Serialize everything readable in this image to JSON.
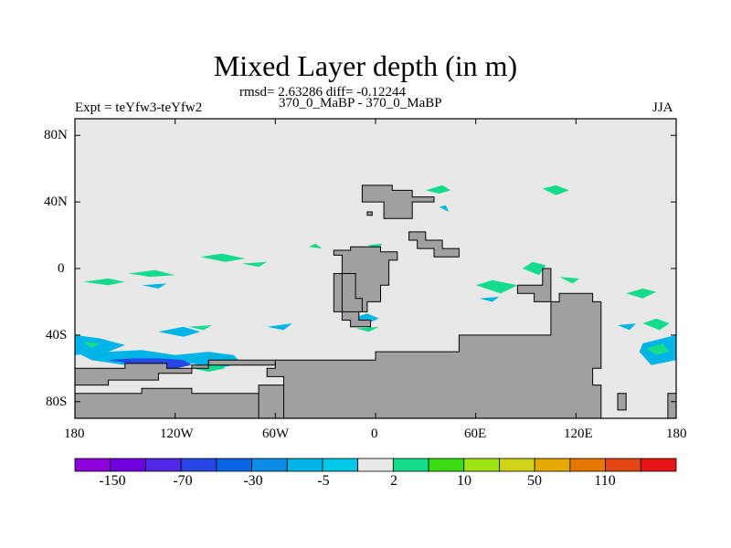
{
  "title": "Mixed Layer depth (in m)",
  "stats": "rmsd= 2.63286 diff= -0.12244",
  "left_label": "Expt = teYfw3-teYfw2",
  "center_label": "370_0_MaBP - 370_0_MaBP",
  "right_label": "JJA",
  "lat_ticks": [
    "80N",
    "40N",
    "0",
    "40S",
    "80S"
  ],
  "lon_ticks": [
    "180",
    "120W",
    "60W",
    "0",
    "60E",
    "120E",
    "180"
  ],
  "colorbar": {
    "colors": [
      "#8c00dc",
      "#7000e0",
      "#5028e6",
      "#2846e6",
      "#0a64e6",
      "#0a8ce6",
      "#00b4e6",
      "#00c8e6",
      "#e8e8e8",
      "#14dc8c",
      "#3cdc14",
      "#a0e614",
      "#d2d214",
      "#e6aa00",
      "#e67800",
      "#e64614",
      "#e61414"
    ],
    "labels": [
      "-150",
      "-70",
      "-30",
      "-5",
      "2",
      "10",
      "50",
      "110"
    ]
  },
  "chart_data": {
    "type": "heatmap",
    "title": "Mixed Layer depth (in m)",
    "variable": "Mixed layer depth difference",
    "units": "m",
    "season": "JJA",
    "experiment": "teYfw3-teYfw2",
    "comparison": "370_0_MaBP - 370_0_MaBP",
    "rmsd": 2.63286,
    "diff": -0.12244,
    "lon_range": [
      -180,
      180
    ],
    "lat_range": [
      -90,
      90
    ],
    "contour_levels": [
      -150,
      -70,
      -30,
      -5,
      2,
      10,
      50,
      110
    ],
    "colors": {
      "ocean_background": "#e8e8e8",
      "land": "#a0a0a0",
      "positive_anomaly": "#14dc8c",
      "negative_anomaly": "#00b4e6"
    },
    "land_masses": [
      {
        "name": "northern-continent-west",
        "points": [
          [
            -8,
            50
          ],
          [
            -8,
            40
          ],
          [
            5,
            40
          ],
          [
            5,
            30
          ],
          [
            22,
            30
          ],
          [
            22,
            40
          ],
          [
            35,
            40
          ],
          [
            35,
            43
          ],
          [
            22,
            43
          ],
          [
            22,
            47
          ],
          [
            10,
            47
          ],
          [
            10,
            50
          ]
        ]
      },
      {
        "name": "northern-island-chain",
        "points": [
          [
            30,
            22
          ],
          [
            30,
            17
          ],
          [
            40,
            17
          ],
          [
            40,
            12
          ],
          [
            50,
            12
          ],
          [
            50,
            7
          ],
          [
            35,
            7
          ],
          [
            35,
            12
          ],
          [
            25,
            12
          ],
          [
            25,
            17
          ],
          [
            20,
            17
          ],
          [
            20,
            22
          ]
        ]
      },
      {
        "name": "northern-islet",
        "points": [
          [
            -5,
            34
          ],
          [
            -5,
            32
          ],
          [
            -2,
            32
          ],
          [
            -2,
            34
          ]
        ]
      },
      {
        "name": "central-continent",
        "points": [
          [
            -25,
            11
          ],
          [
            -25,
            8
          ],
          [
            -20,
            8
          ],
          [
            -20,
            -3
          ],
          [
            -25,
            -3
          ],
          [
            -25,
            -26
          ],
          [
            -20,
            -26
          ],
          [
            -20,
            -31
          ],
          [
            -15,
            -31
          ],
          [
            -15,
            -35
          ],
          [
            -3,
            -35
          ],
          [
            -3,
            -31
          ],
          [
            -10,
            -31
          ],
          [
            -10,
            -26
          ],
          [
            -5,
            -26
          ],
          [
            -5,
            -20
          ],
          [
            3,
            -20
          ],
          [
            3,
            -10
          ],
          [
            8,
            -10
          ],
          [
            8,
            5
          ],
          [
            13,
            5
          ],
          [
            13,
            10
          ],
          [
            3,
            10
          ],
          [
            3,
            13
          ],
          [
            -15,
            13
          ],
          [
            -15,
            11
          ]
        ]
      },
      {
        "name": "western-cape",
        "points": [
          [
            -20,
            -3
          ],
          [
            -12,
            -3
          ],
          [
            -12,
            -18
          ],
          [
            -8,
            -18
          ],
          [
            -8,
            -26
          ],
          [
            -20,
            -26
          ]
        ]
      },
      {
        "name": "eastern-continent",
        "points": [
          [
            120,
            -15
          ],
          [
            110,
            -15
          ],
          [
            110,
            -20
          ],
          [
            105,
            -20
          ],
          [
            105,
            -40
          ],
          [
            50,
            -40
          ],
          [
            50,
            -50
          ],
          [
            0,
            -50
          ],
          [
            0,
            -55
          ],
          [
            -60,
            -55
          ],
          [
            -60,
            -60
          ],
          [
            -65,
            -60
          ],
          [
            -65,
            -65
          ],
          [
            -55,
            -65
          ],
          [
            -55,
            -90
          ],
          [
            135,
            -90
          ],
          [
            135,
            -70
          ],
          [
            130,
            -70
          ],
          [
            130,
            -60
          ],
          [
            135,
            -60
          ],
          [
            135,
            -20
          ],
          [
            130,
            -20
          ],
          [
            130,
            -15
          ]
        ]
      },
      {
        "name": "eastern-peninsula",
        "points": [
          [
            105,
            -5
          ],
          [
            105,
            0
          ],
          [
            100,
            0
          ],
          [
            100,
            -10
          ],
          [
            85,
            -10
          ],
          [
            85,
            -15
          ],
          [
            95,
            -15
          ],
          [
            95,
            -20
          ],
          [
            105,
            -20
          ]
        ]
      },
      {
        "name": "southern-west-ridge",
        "points": [
          [
            -180,
            -60
          ],
          [
            -180,
            -70
          ],
          [
            -160,
            -70
          ],
          [
            -160,
            -67
          ],
          [
            -130,
            -67
          ],
          [
            -130,
            -63
          ],
          [
            -110,
            -63
          ],
          [
            -110,
            -58
          ],
          [
            -60,
            -58
          ],
          [
            -60,
            -55
          ],
          [
            -100,
            -55
          ],
          [
            -100,
            -60
          ],
          [
            -125,
            -60
          ],
          [
            -125,
            -57
          ],
          [
            -150,
            -57
          ],
          [
            -150,
            -60
          ]
        ]
      },
      {
        "name": "southern-west-base",
        "points": [
          [
            -180,
            -75
          ],
          [
            -180,
            -90
          ],
          [
            -60,
            -90
          ],
          [
            -60,
            -75
          ],
          [
            -110,
            -75
          ],
          [
            -110,
            -72
          ],
          [
            -140,
            -72
          ],
          [
            -140,
            -75
          ]
        ]
      },
      {
        "name": "antarctic-ridge-east",
        "points": [
          [
            -70,
            -70
          ],
          [
            -70,
            -90
          ],
          [
            -55,
            -90
          ],
          [
            -55,
            -70
          ]
        ]
      },
      {
        "name": "eastern-tip",
        "points": [
          [
            175,
            -75
          ],
          [
            175,
            -90
          ],
          [
            180,
            -90
          ],
          [
            180,
            -75
          ]
        ]
      },
      {
        "name": "eastern-tip-block",
        "points": [
          [
            145,
            -75
          ],
          [
            145,
            -85
          ],
          [
            150,
            -85
          ],
          [
            150,
            -75
          ]
        ]
      }
    ],
    "anomaly_patches": [
      {
        "sign": "positive",
        "points": [
          [
            -175,
            -8
          ],
          [
            -160,
            -10
          ],
          [
            -150,
            -8
          ],
          [
            -160,
            -6
          ]
        ]
      },
      {
        "name": "pacific-band",
        "sign": "positive",
        "points": [
          [
            -148,
            -3
          ],
          [
            -135,
            -5
          ],
          [
            -120,
            -4
          ],
          [
            -132,
            -1
          ]
        ]
      },
      {
        "sign": "negative",
        "points": [
          [
            -140,
            -10
          ],
          [
            -130,
            -12
          ],
          [
            -125,
            -9
          ]
        ]
      },
      {
        "sign": "positive",
        "points": [
          [
            -105,
            7
          ],
          [
            -90,
            4
          ],
          [
            -78,
            6
          ],
          [
            -92,
            9
          ]
        ]
      },
      {
        "sign": "positive",
        "points": [
          [
            -80,
            3
          ],
          [
            -70,
            1
          ],
          [
            -65,
            4
          ]
        ]
      },
      {
        "sign": "positive",
        "points": [
          [
            -40,
            13
          ],
          [
            -32,
            12
          ],
          [
            -36,
            15
          ]
        ]
      },
      {
        "sign": "positive",
        "points": [
          [
            -5,
            14
          ],
          [
            2,
            12
          ],
          [
            4,
            15
          ]
        ]
      },
      {
        "sign": "positive",
        "points": [
          [
            40,
            50
          ],
          [
            30,
            47
          ],
          [
            38,
            45
          ],
          [
            45,
            47
          ]
        ]
      },
      {
        "sign": "negative",
        "points": [
          [
            38,
            37
          ],
          [
            44,
            34
          ],
          [
            42,
            38
          ]
        ]
      },
      {
        "sign": "positive",
        "points": [
          [
            100,
            48
          ],
          [
            108,
            44
          ],
          [
            116,
            47
          ],
          [
            108,
            50
          ]
        ]
      },
      {
        "sign": "positive",
        "points": [
          [
            60,
            -10
          ],
          [
            75,
            -15
          ],
          [
            85,
            -10
          ],
          [
            70,
            -7
          ]
        ]
      },
      {
        "sign": "negative",
        "points": [
          [
            62,
            -18
          ],
          [
            70,
            -20
          ],
          [
            74,
            -17
          ]
        ]
      },
      {
        "sign": "positive",
        "points": [
          [
            88,
            0
          ],
          [
            98,
            -4
          ],
          [
            102,
            2
          ],
          [
            94,
            4
          ]
        ]
      },
      {
        "sign": "negative",
        "points": [
          [
            92,
            -12
          ],
          [
            98,
            -15
          ],
          [
            102,
            -10
          ]
        ]
      },
      {
        "sign": "positive",
        "points": [
          [
            110,
            -5
          ],
          [
            118,
            -9
          ],
          [
            122,
            -6
          ]
        ]
      },
      {
        "sign": "positive",
        "points": [
          [
            150,
            -15
          ],
          [
            160,
            -18
          ],
          [
            168,
            -14
          ],
          [
            160,
            -12
          ]
        ]
      },
      {
        "sign": "negative",
        "points": [
          [
            145,
            -34
          ],
          [
            152,
            -37
          ],
          [
            156,
            -33
          ]
        ]
      },
      {
        "sign": "positive",
        "points": [
          [
            160,
            -33
          ],
          [
            168,
            -30
          ],
          [
            176,
            -33
          ],
          [
            170,
            -37
          ]
        ]
      },
      {
        "sign": "negative",
        "points": [
          [
            160,
            -45
          ],
          [
            180,
            -40
          ],
          [
            180,
            -55
          ],
          [
            165,
            -58
          ],
          [
            158,
            -50
          ]
        ]
      },
      {
        "sign": "positive",
        "points": [
          [
            162,
            -48
          ],
          [
            172,
            -45
          ],
          [
            176,
            -50
          ],
          [
            168,
            -52
          ]
        ]
      },
      {
        "sign": "negative",
        "points": [
          [
            -180,
            -40
          ],
          [
            -165,
            -42
          ],
          [
            -150,
            -46
          ],
          [
            -160,
            -50
          ],
          [
            -180,
            -52
          ]
        ]
      },
      {
        "sign": "positive",
        "points": [
          [
            -175,
            -44
          ],
          [
            -165,
            -45
          ],
          [
            -170,
            -48
          ]
        ]
      },
      {
        "sign": "negative",
        "points": [
          [
            -130,
            -38
          ],
          [
            -115,
            -41
          ],
          [
            -105,
            -38
          ],
          [
            -115,
            -35
          ]
        ]
      },
      {
        "sign": "positive",
        "points": [
          [
            -112,
            -35
          ],
          [
            -103,
            -37
          ],
          [
            -98,
            -34
          ]
        ]
      },
      {
        "sign": "negative",
        "points": [
          [
            -65,
            -35
          ],
          [
            -55,
            -37
          ],
          [
            -50,
            -33
          ]
        ]
      },
      {
        "sign": "negative",
        "points": [
          [
            -15,
            -30
          ],
          [
            -5,
            -33
          ],
          [
            2,
            -30
          ],
          [
            -5,
            -27
          ]
        ]
      },
      {
        "sign": "positive",
        "points": [
          [
            -12,
            -36
          ],
          [
            -4,
            -38
          ],
          [
            2,
            -35
          ]
        ]
      },
      {
        "name": "southern-ocean-belt-outer",
        "sign": "negative",
        "points": [
          [
            -180,
            -50
          ],
          [
            -170,
            -55
          ],
          [
            -150,
            -58
          ],
          [
            -130,
            -60
          ],
          [
            -110,
            -57
          ],
          [
            -95,
            -60
          ],
          [
            -80,
            -57
          ],
          [
            -85,
            -52
          ],
          [
            -100,
            -50
          ],
          [
            -120,
            -52
          ],
          [
            -140,
            -49
          ],
          [
            -160,
            -50
          ]
        ]
      },
      {
        "name": "southern-ocean-belt-core",
        "sign": "negative-strong",
        "points": [
          [
            -160,
            -55
          ],
          [
            -140,
            -58
          ],
          [
            -125,
            -61
          ],
          [
            -110,
            -58
          ],
          [
            -115,
            -55
          ],
          [
            -130,
            -54
          ],
          [
            -145,
            -54
          ]
        ]
      },
      {
        "name": "southern-ocean-belt-positive",
        "sign": "positive",
        "points": [
          [
            -110,
            -60
          ],
          [
            -100,
            -62
          ],
          [
            -90,
            -60
          ],
          [
            -95,
            -57
          ]
        ]
      },
      {
        "sign": "positive",
        "points": [
          [
            -85,
            -55
          ],
          [
            -75,
            -58
          ],
          [
            -72,
            -55
          ]
        ]
      }
    ]
  }
}
